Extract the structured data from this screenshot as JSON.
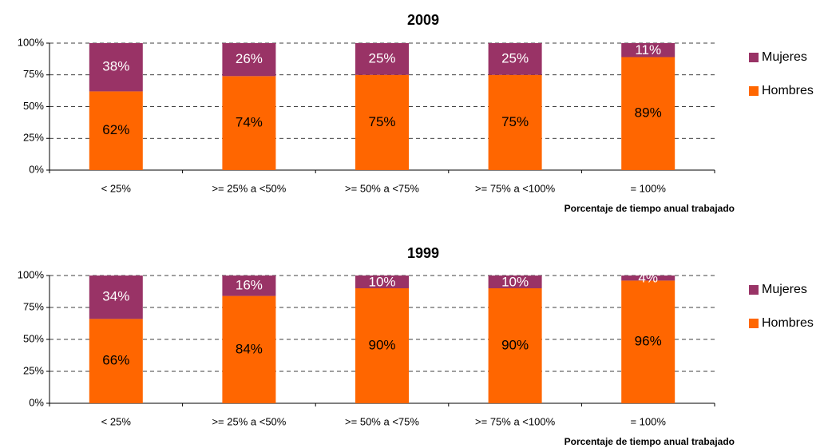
{
  "chart_data": [
    {
      "type": "stacked_bar",
      "title": "2009",
      "x_label": "Porcentaje de tiempo anual trabajado",
      "categories": [
        "< 25%",
        ">= 25% a <50%",
        ">= 50% a <75%",
        ">= 75% a <100%",
        "= 100%"
      ],
      "series": [
        {
          "name": "Hombres",
          "color": "#ff6600",
          "values": [
            62,
            74,
            75,
            75,
            89
          ],
          "value_labels": [
            "62%",
            "74%",
            "75%",
            "75%",
            "89%"
          ]
        },
        {
          "name": "Mujeres",
          "color": "#993366",
          "values": [
            38,
            26,
            25,
            25,
            11
          ],
          "value_labels": [
            "38%",
            "26%",
            "25%",
            "25%",
            "11%"
          ]
        }
      ],
      "ylim": [
        0,
        100
      ],
      "yticks": [
        {
          "value": 0,
          "label": "0%"
        },
        {
          "value": 25,
          "label": "25%"
        },
        {
          "value": 50,
          "label": "50%"
        },
        {
          "value": 75,
          "label": "75%"
        },
        {
          "value": 100,
          "label": "100%"
        }
      ],
      "grid": true,
      "legend": "right"
    },
    {
      "type": "stacked_bar",
      "title": "1999",
      "x_label": "Porcentaje de tiempo anual trabajado",
      "categories": [
        "< 25%",
        ">= 25% a <50%",
        ">= 50% a <75%",
        ">= 75% a <100%",
        "= 100%"
      ],
      "series": [
        {
          "name": "Hombres",
          "color": "#ff6600",
          "values": [
            66,
            84,
            90,
            90,
            96
          ],
          "value_labels": [
            "66%",
            "84%",
            "90%",
            "90%",
            "96%"
          ]
        },
        {
          "name": "Mujeres",
          "color": "#993366",
          "values": [
            34,
            16,
            10,
            10,
            4
          ],
          "value_labels": [
            "34%",
            "16%",
            "10%",
            "10%",
            "4%"
          ]
        }
      ],
      "ylim": [
        0,
        100
      ],
      "yticks": [
        {
          "value": 0,
          "label": "0%"
        },
        {
          "value": 25,
          "label": "25%"
        },
        {
          "value": 50,
          "label": "50%"
        },
        {
          "value": 75,
          "label": "75%"
        },
        {
          "value": 100,
          "label": "100%"
        }
      ],
      "grid": true,
      "legend": "right"
    }
  ]
}
